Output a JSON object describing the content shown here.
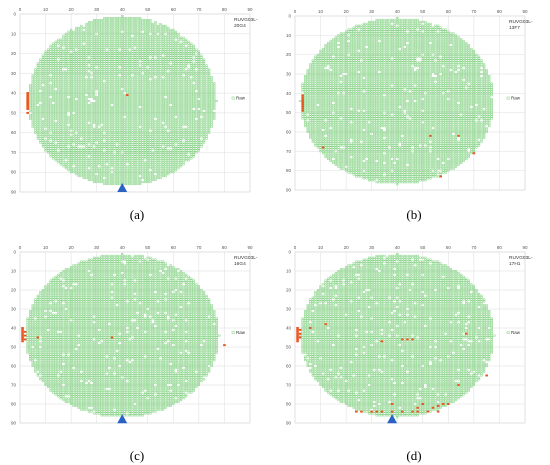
{
  "colors": {
    "pass": "#7ed07e",
    "fail": "#e8541c",
    "notch": "#2b63c5",
    "grid": "#dddddd",
    "axis_text": "#555555"
  },
  "chart_data": [
    {
      "type": "scatter",
      "panel": "(a)",
      "label": [
        "RUVG03L-",
        "20G4"
      ],
      "legend_entry": "Raw",
      "legend_position": "right",
      "x_ticks": [
        "0",
        "10",
        "20",
        "30",
        "40",
        "50",
        "60",
        "70",
        "80",
        "90"
      ],
      "y_ticks": [
        "0",
        "10",
        "20",
        "30",
        "40",
        "50",
        "60",
        "70",
        "80",
        "90"
      ],
      "xlim": [
        0,
        90
      ],
      "ylim": [
        0,
        90
      ],
      "y_inverted": true,
      "grid": true,
      "wafer": {
        "cx": 40,
        "cy": 44,
        "rx": 37,
        "ry": 43
      },
      "notch": {
        "x": 40,
        "y": 88,
        "direction": "up"
      },
      "fail_dies": [
        [
          3,
          40
        ],
        [
          3,
          41
        ],
        [
          3,
          42
        ],
        [
          3,
          43
        ],
        [
          3,
          44
        ],
        [
          3,
          45
        ],
        [
          3,
          46
        ],
        [
          3,
          47
        ],
        [
          3,
          48
        ],
        [
          3,
          50
        ],
        [
          42,
          41
        ]
      ]
    },
    {
      "type": "scatter",
      "panel": "(b)",
      "label": [
        "RUVG03L-",
        "13F7"
      ],
      "legend_entry": "Raw",
      "legend_position": "right",
      "x_ticks": [
        "0",
        "10",
        "20",
        "30",
        "40",
        "50",
        "60",
        "70",
        "80",
        "90"
      ],
      "y_ticks": [
        "0",
        "10",
        "20",
        "30",
        "40",
        "50",
        "60",
        "70",
        "80",
        "90"
      ],
      "xlim": [
        0,
        90
      ],
      "ylim": [
        0,
        90
      ],
      "y_inverted": true,
      "grid": true,
      "wafer": {
        "cx": 40,
        "cy": 44,
        "rx": 38,
        "ry": 43
      },
      "notch": null,
      "fail_dies": [
        [
          3,
          41
        ],
        [
          3,
          42
        ],
        [
          3,
          43
        ],
        [
          3,
          44
        ],
        [
          3,
          45
        ],
        [
          3,
          46
        ],
        [
          3,
          47
        ],
        [
          3,
          48
        ],
        [
          3,
          49
        ],
        [
          11,
          68
        ],
        [
          53,
          62
        ],
        [
          57,
          83
        ],
        [
          64,
          62
        ],
        [
          70,
          71
        ]
      ]
    },
    {
      "type": "scatter",
      "panel": "(c)",
      "label": [
        "RUVG03L-",
        "16G4"
      ],
      "legend_entry": "Raw",
      "legend_position": "right",
      "x_ticks": [
        "0",
        "10",
        "20",
        "30",
        "40",
        "50",
        "60",
        "70",
        "80",
        "90"
      ],
      "y_ticks": [
        "0",
        "10",
        "20",
        "30",
        "40",
        "50",
        "60",
        "70",
        "80",
        "90"
      ],
      "xlim": [
        0,
        90
      ],
      "ylim": [
        0,
        90
      ],
      "y_inverted": true,
      "grid": true,
      "wafer": {
        "cx": 40,
        "cy": 44,
        "rx": 38,
        "ry": 43
      },
      "notch": {
        "x": 40,
        "y": 88,
        "direction": "up"
      },
      "fail_dies": [
        [
          1,
          40
        ],
        [
          1,
          41
        ],
        [
          1,
          42
        ],
        [
          1,
          43
        ],
        [
          1,
          44
        ],
        [
          1,
          45
        ],
        [
          1,
          46
        ],
        [
          1,
          47
        ],
        [
          2,
          42
        ],
        [
          2,
          44
        ],
        [
          2,
          46
        ],
        [
          7,
          45
        ],
        [
          36,
          45
        ],
        [
          80,
          49
        ]
      ]
    },
    {
      "type": "scatter",
      "panel": "(d)",
      "label": [
        "RUVG03L-",
        "17H1"
      ],
      "legend_entry": "Raw",
      "legend_position": "right",
      "x_ticks": [
        "0",
        "10",
        "20",
        "30",
        "40",
        "50",
        "60",
        "70",
        "80",
        "90"
      ],
      "y_ticks": [
        "0",
        "10",
        "20",
        "30",
        "40",
        "50",
        "60",
        "70",
        "80",
        "90"
      ],
      "xlim": [
        0,
        90
      ],
      "ylim": [
        0,
        90
      ],
      "y_inverted": true,
      "grid": true,
      "wafer": {
        "cx": 40,
        "cy": 44,
        "rx": 38,
        "ry": 43
      },
      "notch": {
        "x": 38,
        "y": 88,
        "direction": "up"
      },
      "fail_dies": [
        [
          1,
          40
        ],
        [
          1,
          41
        ],
        [
          1,
          42
        ],
        [
          1,
          43
        ],
        [
          1,
          44
        ],
        [
          1,
          45
        ],
        [
          1,
          46
        ],
        [
          1,
          47
        ],
        [
          2,
          41
        ],
        [
          2,
          43
        ],
        [
          2,
          45
        ],
        [
          6,
          40
        ],
        [
          12,
          38
        ],
        [
          34,
          47
        ],
        [
          42,
          46
        ],
        [
          44,
          46
        ],
        [
          46,
          46
        ],
        [
          64,
          70
        ],
        [
          67,
          43
        ],
        [
          75,
          65
        ],
        [
          24,
          84
        ],
        [
          26,
          84
        ],
        [
          30,
          84
        ],
        [
          32,
          84
        ],
        [
          34,
          84
        ],
        [
          38,
          80
        ],
        [
          38,
          84
        ],
        [
          42,
          84
        ],
        [
          46,
          84
        ],
        [
          48,
          82
        ],
        [
          48,
          84
        ],
        [
          50,
          80
        ],
        [
          52,
          84
        ],
        [
          54,
          82
        ],
        [
          56,
          84
        ],
        [
          56,
          81
        ],
        [
          58,
          80
        ],
        [
          60,
          80
        ]
      ]
    }
  ]
}
